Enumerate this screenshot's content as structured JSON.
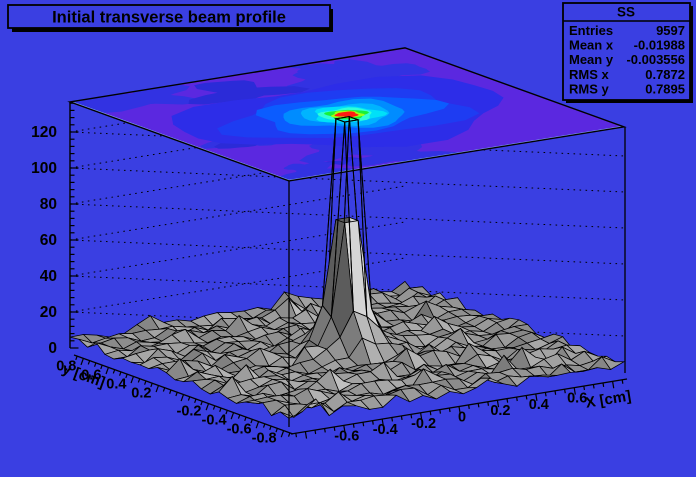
{
  "title_box": {
    "text": "Initial transverse beam profile"
  },
  "stats_box": {
    "title": "SS",
    "rows": [
      {
        "label": "Entries",
        "value": "9597"
      },
      {
        "label": "Mean x",
        "value": "-0.01988"
      },
      {
        "label": "Mean y",
        "value": "-0.003556"
      },
      {
        "label": "RMS x",
        "value": "0.7872"
      },
      {
        "label": "RMS y",
        "value": "0.7895"
      }
    ]
  },
  "axes": {
    "x": {
      "title": "X [cm]",
      "tick_labels": [
        "-0.6",
        "-0.4",
        "-0.2",
        "0",
        "0.2",
        "0.4",
        "0.6"
      ],
      "tick_values": [
        -0.6,
        -0.4,
        -0.2,
        0,
        0.2,
        0.4,
        0.6
      ],
      "range": [
        -0.875,
        0.875
      ]
    },
    "y": {
      "title": "y [cm]",
      "tick_labels": [
        "0.8",
        "0.6",
        "0.4",
        "0.2",
        "-0.2",
        "-0.4",
        "-0.6",
        "-0.8"
      ],
      "tick_values": [
        0.8,
        0.6,
        0.4,
        0.2,
        -0.2,
        -0.4,
        -0.6,
        -0.8
      ],
      "range": [
        -0.875,
        0.875
      ]
    },
    "z": {
      "tick_labels": [
        "0",
        "20",
        "40",
        "60",
        "80",
        "100",
        "120"
      ],
      "tick_values": [
        0,
        20,
        40,
        60,
        80,
        100,
        120
      ],
      "range": [
        0,
        136
      ]
    }
  },
  "chart_data": {
    "type": "heatmap",
    "representation": [
      "3d-gray-surface-mesh",
      "top-plane-contour-projection"
    ],
    "title": "Initial transverse beam profile",
    "histogram_name": "SS",
    "entries": 9597,
    "mean_x": -0.01988,
    "mean_y": -0.003556,
    "rms_x": 0.7872,
    "rms_y": 0.7895,
    "x_range_cm": [
      -0.875,
      0.875
    ],
    "y_range_cm": [
      -0.875,
      0.875
    ],
    "z_ticks": [
      0,
      20,
      40,
      60,
      80,
      100,
      120
    ],
    "z_max": 136,
    "bins": {
      "nx": 25,
      "ny": 25
    },
    "peak": {
      "x_cm": 0,
      "y_cm": 0,
      "height": 134,
      "width_bins": 1
    },
    "pedestal_height": 36,
    "floor_noise_range": [
      0,
      14
    ],
    "contour_rings_outward_to_center": [
      {
        "r_cm": 0.55,
        "color": "#2d2de8"
      },
      {
        "r_cm": 0.4,
        "color": "#1e3cf2"
      },
      {
        "r_cm": 0.3,
        "color": "#0b5cff"
      },
      {
        "r_cm": 0.235,
        "color": "#008cff"
      },
      {
        "r_cm": 0.185,
        "color": "#00b4ff"
      },
      {
        "r_cm": 0.145,
        "color": "#00e0f8"
      },
      {
        "r_cm": 0.112,
        "color": "#30ffd6"
      },
      {
        "r_cm": 0.086,
        "color": "#18f03a"
      },
      {
        "r_cm": 0.066,
        "color": "#9dff17"
      },
      {
        "r_cm": 0.048,
        "color": "#ff1b10"
      }
    ]
  },
  "colors": {
    "canvas": "#3a3fe2",
    "plane_violet": "#5b28e0",
    "plane_patch_blue": "#3232e2",
    "plane_patch_blue2": "#2b2bd8",
    "plane_rim": "#7fa8f0",
    "box_fill": "#3a3fe2",
    "frame": "#000000"
  }
}
